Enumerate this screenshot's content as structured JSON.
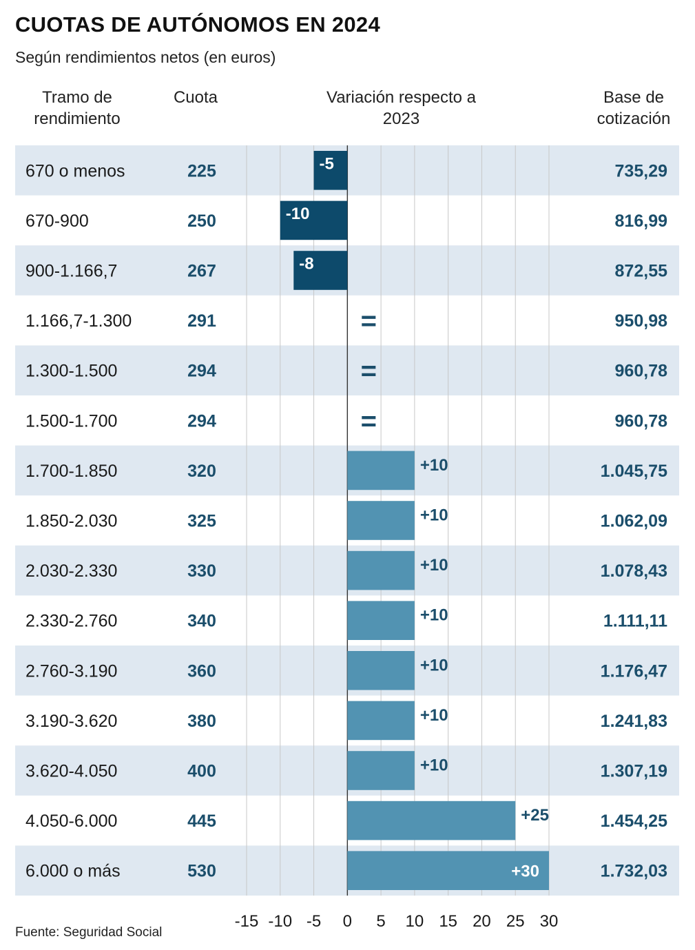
{
  "title": "CUOTAS DE AUTÓNOMOS EN 2024",
  "subtitle": "Según rendimientos netos (en euros)",
  "headers": {
    "tramo": "Tramo de rendimiento",
    "cuota": "Cuota",
    "variacion": "Variación respecto a 2023",
    "base": "Base de cotización"
  },
  "source": "Fuente: Seguridad Social",
  "colors": {
    "negative": "#0d4a6b",
    "positive": "#5293b2",
    "stripe": "#dfe8f1",
    "number": "#1b4e6b"
  },
  "chart_data": {
    "type": "bar",
    "orientation": "horizontal",
    "categories": [
      "670 o menos",
      "670-900",
      "900-1.166,7",
      "1.166,7-1.300",
      "1.300-1.500",
      "1.500-1.700",
      "1.700-1.850",
      "1.850-2.030",
      "2.030-2.330",
      "2.330-2.760",
      "2.760-3.190",
      "3.190-3.620",
      "3.620-4.050",
      "4.050-6.000",
      "6.000 o más"
    ],
    "cuota": [
      "225",
      "250",
      "267",
      "291",
      "294",
      "294",
      "320",
      "325",
      "330",
      "340",
      "360",
      "380",
      "400",
      "445",
      "530"
    ],
    "values": [
      -5,
      -10,
      -8,
      0,
      0,
      0,
      10,
      10,
      10,
      10,
      10,
      10,
      10,
      25,
      30
    ],
    "value_labels": [
      "-5",
      "-10",
      "-8",
      "=",
      "=",
      "=",
      "+10",
      "+10",
      "+10",
      "+10",
      "+10",
      "+10",
      "+10",
      "+25",
      "+30"
    ],
    "base_cotizacion": [
      "735,29",
      "816,99",
      "872,55",
      "950,98",
      "960,78",
      "960,78",
      "1.045,75",
      "1.062,09",
      "1.078,43",
      "1.111,11",
      "1.176,47",
      "1.241,83",
      "1.307,19",
      "1.454,25",
      "1.732,03"
    ],
    "xlim": [
      -15,
      30
    ],
    "xticks": [
      -15,
      -10,
      -5,
      0,
      5,
      10,
      15,
      20,
      25,
      30
    ],
    "xtick_labels": [
      "-15",
      "-10",
      "-5",
      "0",
      "5",
      "10",
      "15",
      "20",
      "25",
      "30"
    ],
    "grid": true
  }
}
